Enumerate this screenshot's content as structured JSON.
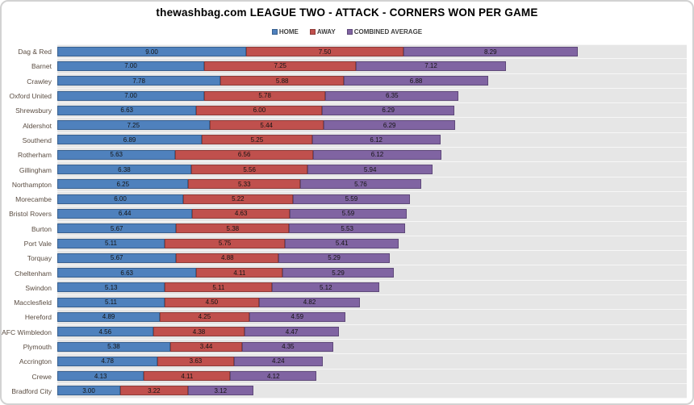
{
  "header": {
    "title": "thewashbag.com LEAGUE TWO - ATTACK - CORNERS WON PER GAME"
  },
  "legend": {
    "items": [
      "HOME",
      "AWAY",
      "COMBINED AVERAGE"
    ]
  },
  "colors": {
    "home_fill": "#4F81BD",
    "home_border": "#38608F",
    "away_fill": "#C0504D",
    "away_border": "#8E3B38",
    "combined_fill": "#8064A2",
    "combined_border": "#5F497A",
    "plot_background": "#E6E6E6",
    "category_label_color": "#5A4C41"
  },
  "chart_data": {
    "type": "bar",
    "orientation": "horizontal-stacked",
    "title": "thewashbag.com LEAGUE TWO - ATTACK - CORNERS WON PER GAME",
    "xlabel": "",
    "ylabel": "",
    "xlim": [
      0,
      30
    ],
    "grid": false,
    "legend_position": "top",
    "value_label_decimals": 2,
    "categories": [
      "Dag & Red",
      "Barnet",
      "Crawley",
      "Oxford United",
      "Shrewsbury",
      "Aldershot",
      "Southend",
      "Rotherham",
      "Gillingham",
      "Northampton",
      "Morecambe",
      "Bristol Rovers",
      "Burton",
      "Port Vale",
      "Torquay",
      "Cheltenham",
      "Swindon",
      "Macclesfield",
      "Hereford",
      "AFC Wimbledon",
      "Plymouth",
      "Accrington",
      "Crewe",
      "Bradford City"
    ],
    "series": [
      {
        "name": "HOME",
        "key": "home",
        "color": "#4F81BD",
        "border": "#38608F",
        "values": [
          9.0,
          7.0,
          7.78,
          7.0,
          6.63,
          7.25,
          6.89,
          5.63,
          6.38,
          6.25,
          6.0,
          6.44,
          5.67,
          5.11,
          5.67,
          6.63,
          5.13,
          5.11,
          4.89,
          4.56,
          5.38,
          4.78,
          4.13,
          3.0
        ]
      },
      {
        "name": "AWAY",
        "key": "away",
        "color": "#C0504D",
        "border": "#8E3B38",
        "values": [
          7.5,
          7.25,
          5.88,
          5.78,
          6.0,
          5.44,
          5.25,
          6.56,
          5.56,
          5.33,
          5.22,
          4.63,
          5.38,
          5.75,
          4.88,
          4.11,
          5.11,
          4.5,
          4.25,
          4.38,
          3.44,
          3.63,
          4.11,
          3.22
        ]
      },
      {
        "name": "COMBINED AVERAGE",
        "key": "combined",
        "color": "#8064A2",
        "border": "#5F497A",
        "values": [
          8.29,
          7.12,
          6.88,
          6.35,
          6.29,
          6.29,
          6.12,
          6.12,
          5.94,
          5.76,
          5.59,
          5.59,
          5.53,
          5.41,
          5.29,
          5.29,
          5.12,
          4.82,
          4.59,
          4.47,
          4.35,
          4.24,
          4.12,
          3.12
        ]
      }
    ]
  }
}
